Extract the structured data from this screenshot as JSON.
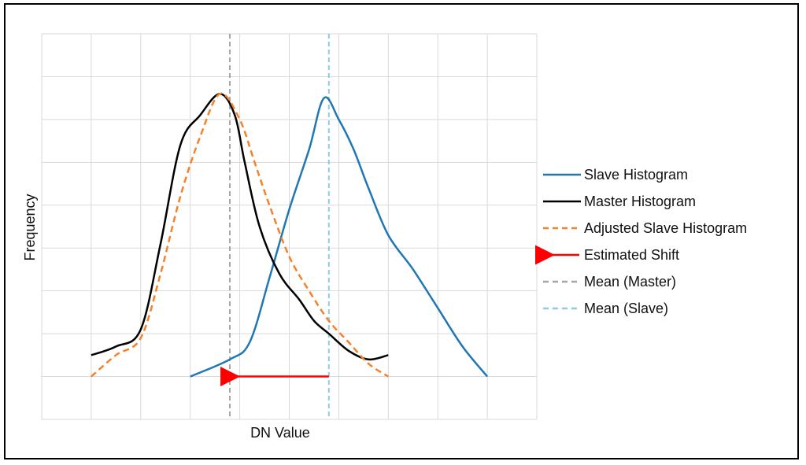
{
  "chart_data": {
    "type": "line",
    "title": "",
    "xlabel": "DN Value",
    "ylabel": "Frequency",
    "xlim": [
      0,
      10
    ],
    "ylim": [
      0,
      9
    ],
    "grid": true,
    "legend_position": "right",
    "series": [
      {
        "name": "Slave Histogram",
        "color": "#1f77b4",
        "style": "solid",
        "x": [
          3.0,
          3.8,
          4.2,
          4.6,
          5.0,
          5.4,
          5.7,
          6.0,
          6.3,
          6.6,
          7.0,
          7.5,
          8.0,
          8.5,
          9.0
        ],
        "y": [
          1.0,
          1.4,
          1.8,
          3.3,
          4.9,
          6.3,
          7.5,
          7.0,
          6.3,
          5.4,
          4.3,
          3.5,
          2.6,
          1.7,
          1.0
        ]
      },
      {
        "name": "Master Histogram",
        "color": "#000000",
        "style": "solid",
        "x": [
          1.0,
          1.5,
          2.0,
          2.4,
          2.8,
          3.2,
          3.6,
          3.9,
          4.1,
          4.4,
          4.8,
          5.2,
          5.5,
          5.8,
          6.2,
          6.6,
          7.0
        ],
        "y": [
          1.5,
          1.7,
          2.1,
          4.1,
          6.4,
          7.1,
          7.6,
          7.1,
          6.0,
          4.5,
          3.4,
          2.8,
          2.3,
          2.0,
          1.6,
          1.4,
          1.5
        ]
      },
      {
        "name": "Adjusted Slave Histogram",
        "color": "#f5822a",
        "style": "dashed",
        "x": [
          1.0,
          1.5,
          2.0,
          2.4,
          2.8,
          3.2,
          3.6,
          4.0,
          4.3,
          4.6,
          5.0,
          5.4,
          5.8,
          6.2,
          6.6,
          7.0
        ],
        "y": [
          1.0,
          1.5,
          1.9,
          3.4,
          5.2,
          6.6,
          7.6,
          7.0,
          6.0,
          5.0,
          3.8,
          3.0,
          2.3,
          1.8,
          1.3,
          1.0
        ]
      }
    ],
    "vlines": [
      {
        "name": "Mean (Master)",
        "x": 3.8,
        "color": "#a6a6a6",
        "style": "dashed"
      },
      {
        "name": "Mean (Slave)",
        "x": 5.8,
        "color": "#8ecae6",
        "style": "dashed"
      }
    ],
    "annotations": [
      {
        "name": "Estimated Shift",
        "type": "arrow",
        "from_x": 5.8,
        "to_x": 3.8,
        "y": 1.0,
        "color": "#ff0000"
      }
    ],
    "legend": [
      {
        "label": "Slave Histogram",
        "color": "#1f77b4",
        "style": "solid"
      },
      {
        "label": "Master Histogram",
        "color": "#000000",
        "style": "solid"
      },
      {
        "label": "Adjusted Slave Histogram",
        "color": "#f5822a",
        "style": "dashed"
      },
      {
        "label": "Estimated Shift",
        "color": "#ff0000",
        "style": "arrow"
      },
      {
        "label": "Mean (Master)",
        "color": "#a6a6a6",
        "style": "dashed"
      },
      {
        "label": "Mean (Slave)",
        "color": "#8ecae6",
        "style": "dashed"
      }
    ]
  }
}
